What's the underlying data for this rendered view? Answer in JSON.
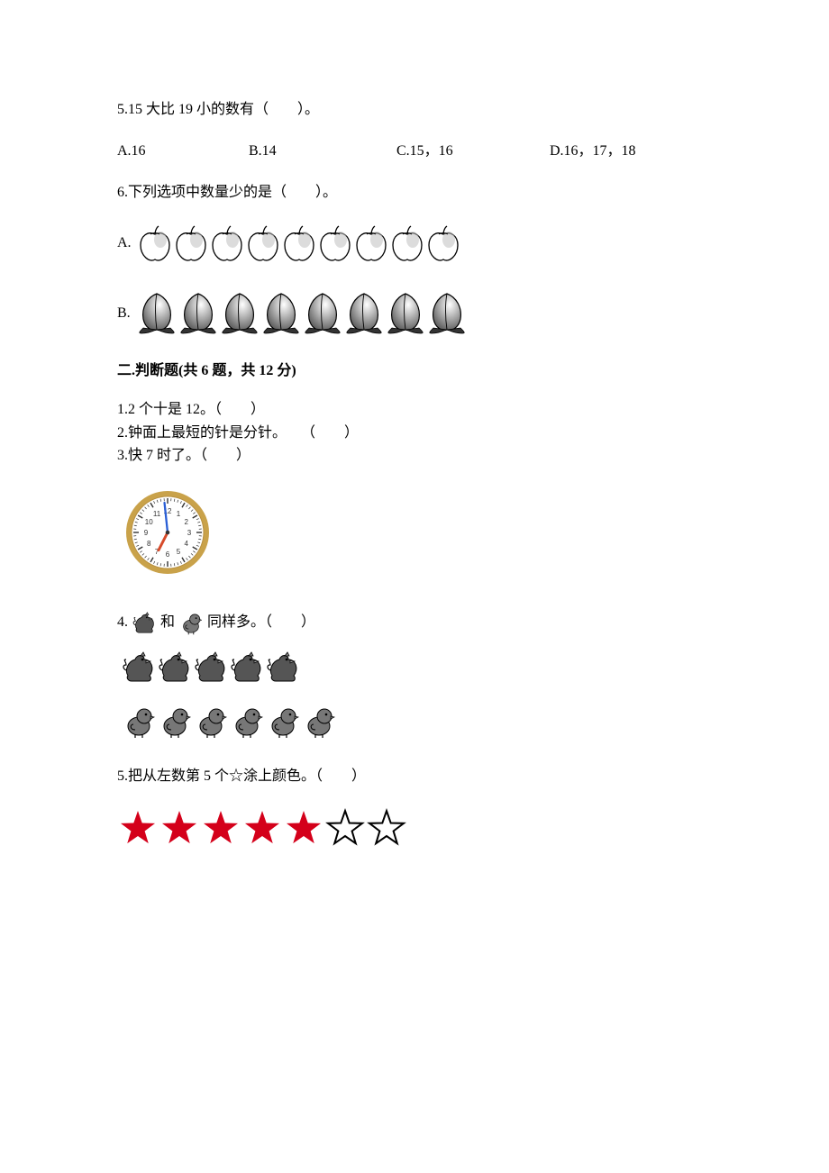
{
  "q5": {
    "text": "5.15 大比 19 小的数有（　　）。",
    "options": {
      "A": "A.16",
      "B": "B.14",
      "C": "C.15，16",
      "D": "D.16，17，18"
    }
  },
  "q6": {
    "text": "6.下列选项中数量少的是（　　）。",
    "option_a_label": "A.",
    "option_b_label": "B.",
    "apples": {
      "count": 9,
      "fill": "#ffffff",
      "stroke": "#000000",
      "shade": "#c0c0c0",
      "size": 40
    },
    "peaches": {
      "count": 8,
      "fill": "#666666",
      "stroke": "#000000",
      "leaf": "#333333",
      "size": 46
    }
  },
  "section2": {
    "title": "二.判断题(共 6 题，共 12 分)",
    "items": {
      "1": "1.2 个十是 12。（　　）",
      "2": "2.钟面上最短的针是分针。　　（　　）",
      "3": "3.快 7 时了。（　　）"
    },
    "clock": {
      "size": 96,
      "rim": "#c9a24a",
      "face": "#ffffff",
      "tick": "#333333",
      "minute_hand": "#2a5fd6",
      "hour_hand": "#d64a2a",
      "numbers_color": "#333333",
      "minute_angle": 354,
      "hour_angle": 207,
      "numbers": [
        "12",
        "1",
        "2",
        "3",
        "4",
        "5",
        "6",
        "7",
        "8",
        "9",
        "10",
        "11"
      ]
    },
    "q4": {
      "prefix": "4.",
      "mid": "和",
      "suffix": "同样多。（　　）",
      "hen_color": "#555555",
      "chick_color": "#777777",
      "hens_count": 5,
      "chicks_count": 6,
      "icon_size": 28,
      "row_size": 40
    },
    "q5": {
      "text": "5.把从左数第 5 个☆涂上颜色。（　　）",
      "stars": {
        "count": 7,
        "filled": 5,
        "fill_color": "#d4001a",
        "empty_stroke": "#000000",
        "size": 46
      }
    }
  }
}
